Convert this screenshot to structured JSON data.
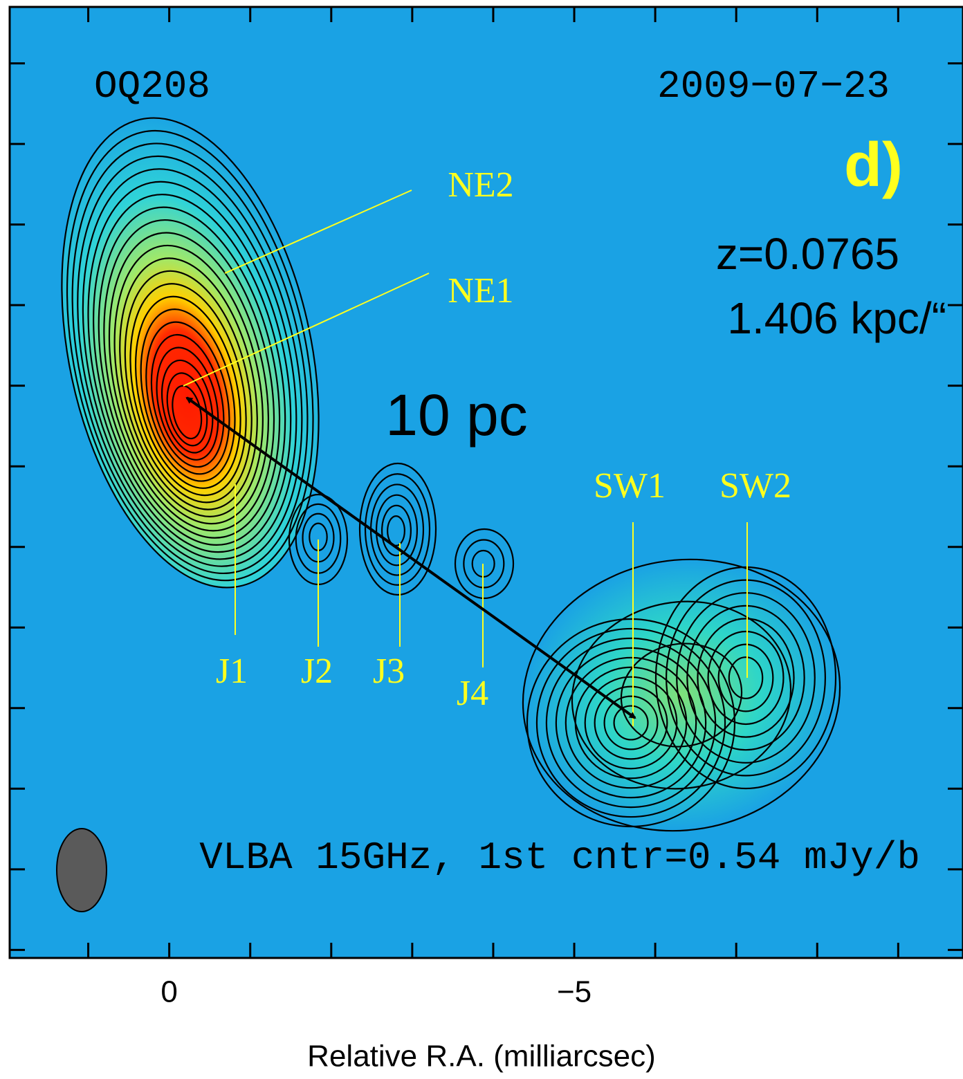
{
  "chart_data": {
    "type": "contour",
    "title": "OQ208",
    "date": "2009−07−23",
    "panel": "d)",
    "redshift": "z=0.0765",
    "scale": "1.406 kpc/“",
    "distance": "10 pc",
    "footnote": "VLBA 15GHz, 1st cntr=0.54 mJy/b",
    "xlabel": "Relative R.A. (milliarcsec)",
    "xlim": [
      1.97,
      -9.8
    ],
    "xticks": [
      0,
      {
        "value": -5,
        "label": "−5"
      }
    ],
    "xminorticks": [
      1,
      -1,
      -2,
      -3,
      -4,
      -6,
      -7,
      -8,
      -9
    ],
    "ylim": [
      4.7,
      -7.1
    ],
    "yticks": [
      4,
      3,
      2,
      1,
      0,
      -1,
      -2,
      -3,
      -4,
      -5,
      -6,
      -7
    ],
    "components": [
      "NE2",
      "NE1",
      "J1",
      "J2",
      "J3",
      "J4",
      "SW1",
      "SW2"
    ],
    "background": "#1aa2e4",
    "label_color": "#ffff1e"
  }
}
